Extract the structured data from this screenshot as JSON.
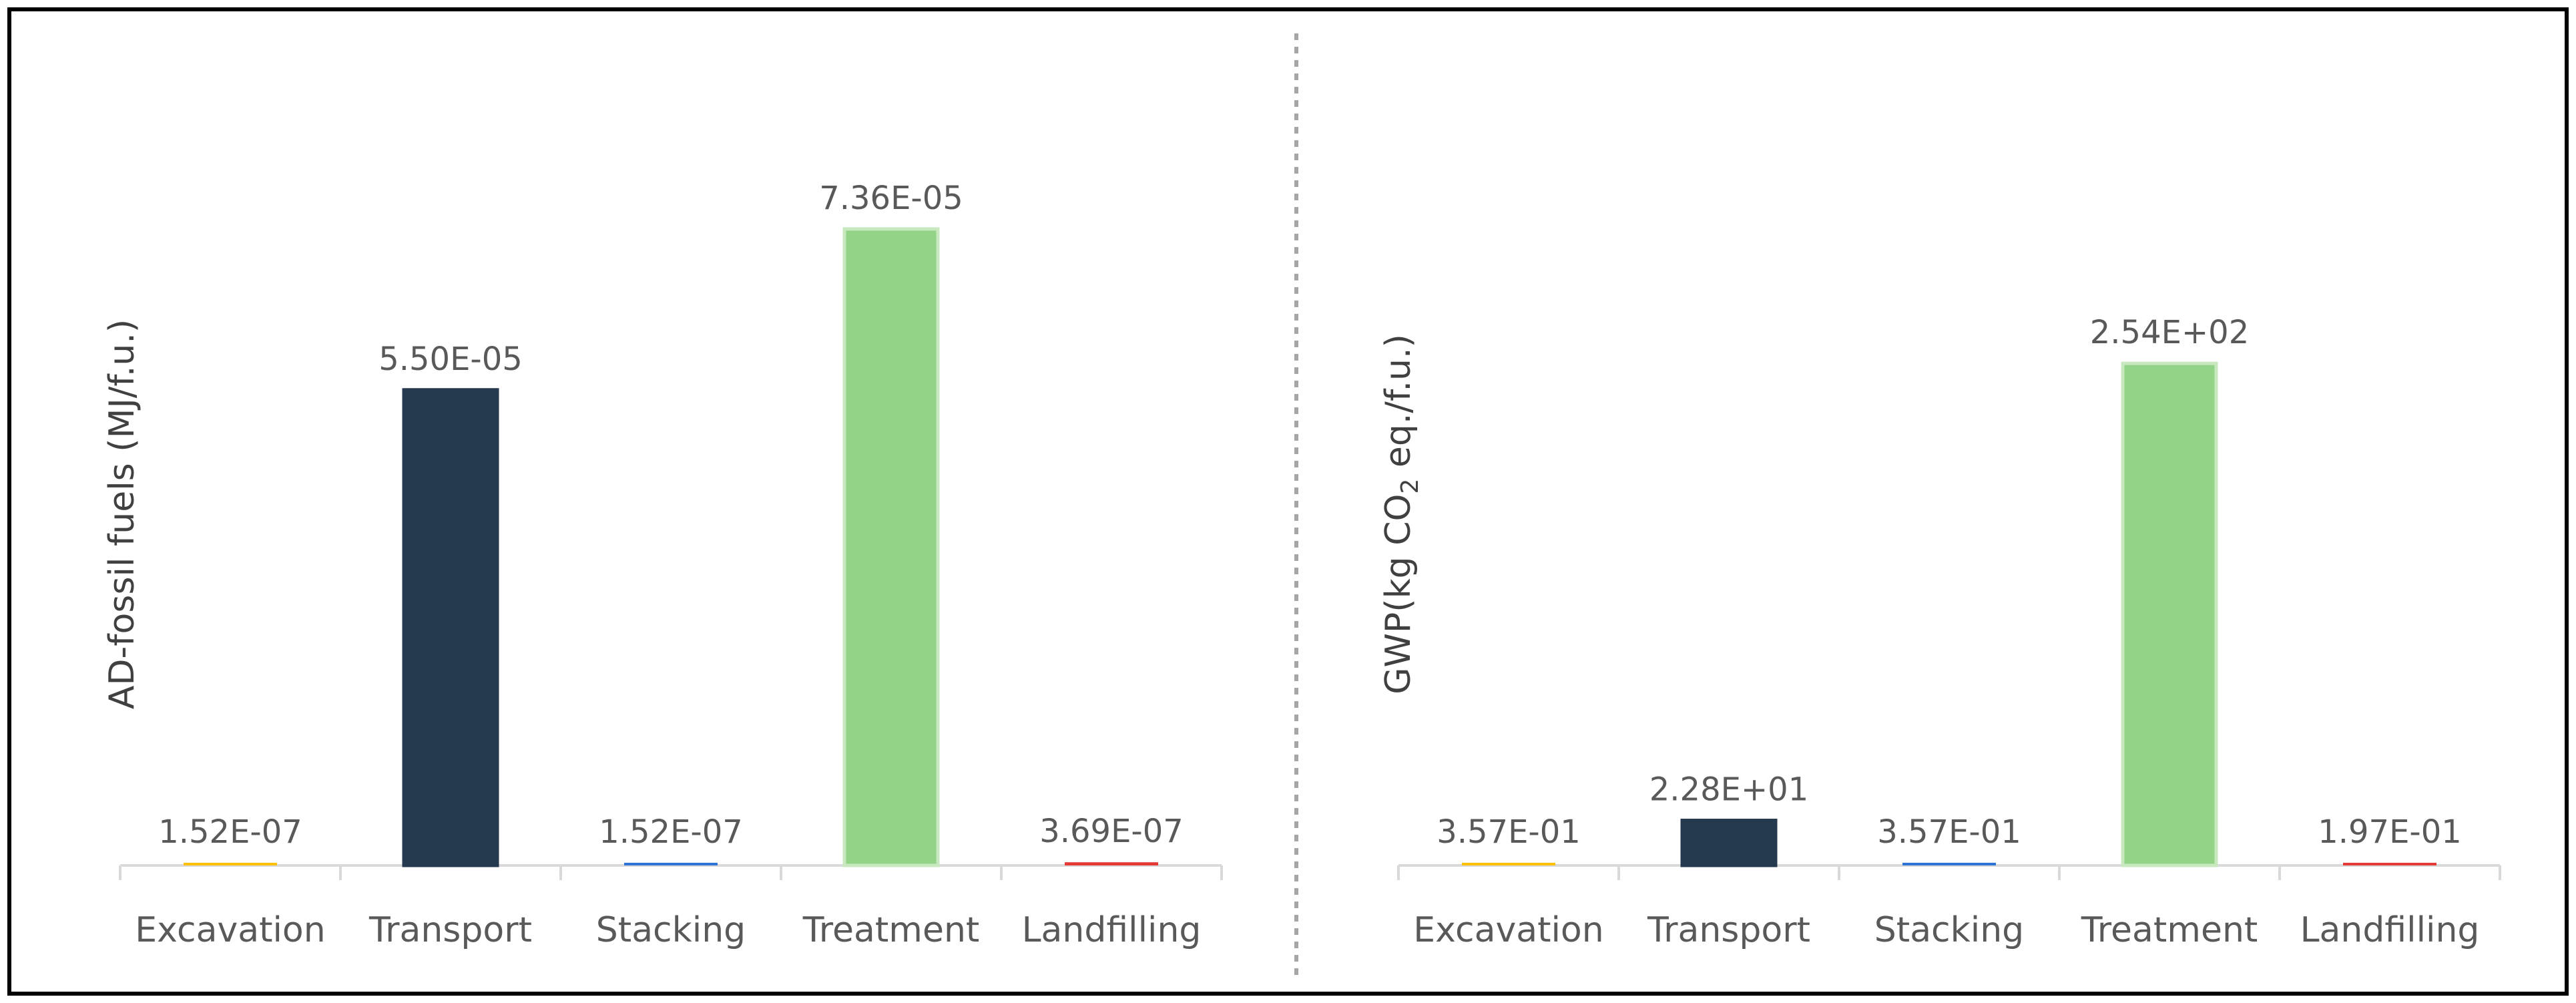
{
  "chart_data": [
    {
      "type": "bar",
      "categories": [
        "Excavation",
        "Transport",
        "Stacking",
        "Treatment",
        "Landfilling"
      ],
      "values": [
        1.52e-07,
        5.5e-05,
        1.52e-07,
        7.36e-05,
        3.69e-07
      ],
      "data_labels": [
        "1.52E-07",
        "5.50E-05",
        "1.52E-07",
        "7.36E-05",
        "3.69E-07"
      ],
      "colors": [
        "#ffc000",
        "#263a4f",
        "#2e75d6",
        "#92d388",
        "#e53935"
      ],
      "title": "",
      "xlabel": "",
      "ylabel": "AD-fossil fuels (MJ/f.u.)",
      "ylim": [
        0,
        8e-05
      ],
      "grid": false,
      "legend": "none"
    },
    {
      "type": "bar",
      "categories": [
        "Excavation",
        "Transport",
        "Stacking",
        "Treatment",
        "Landfilling"
      ],
      "values": [
        0.357,
        22.8,
        0.357,
        254,
        0.197
      ],
      "data_labels": [
        "3.57E-01",
        "2.28E+01",
        "3.57E-01",
        "2.54E+02",
        "1.97E-01"
      ],
      "colors": [
        "#ffc000",
        "#263a4f",
        "#2e75d6",
        "#92d388",
        "#e53935"
      ],
      "title": "",
      "xlabel": "",
      "ylabel": {
        "prefix": "GWP(kg CO",
        "subscript": "2",
        "suffix": " eq./f.u.)"
      },
      "ylim": [
        0,
        350
      ],
      "grid": false,
      "legend": "none"
    }
  ]
}
